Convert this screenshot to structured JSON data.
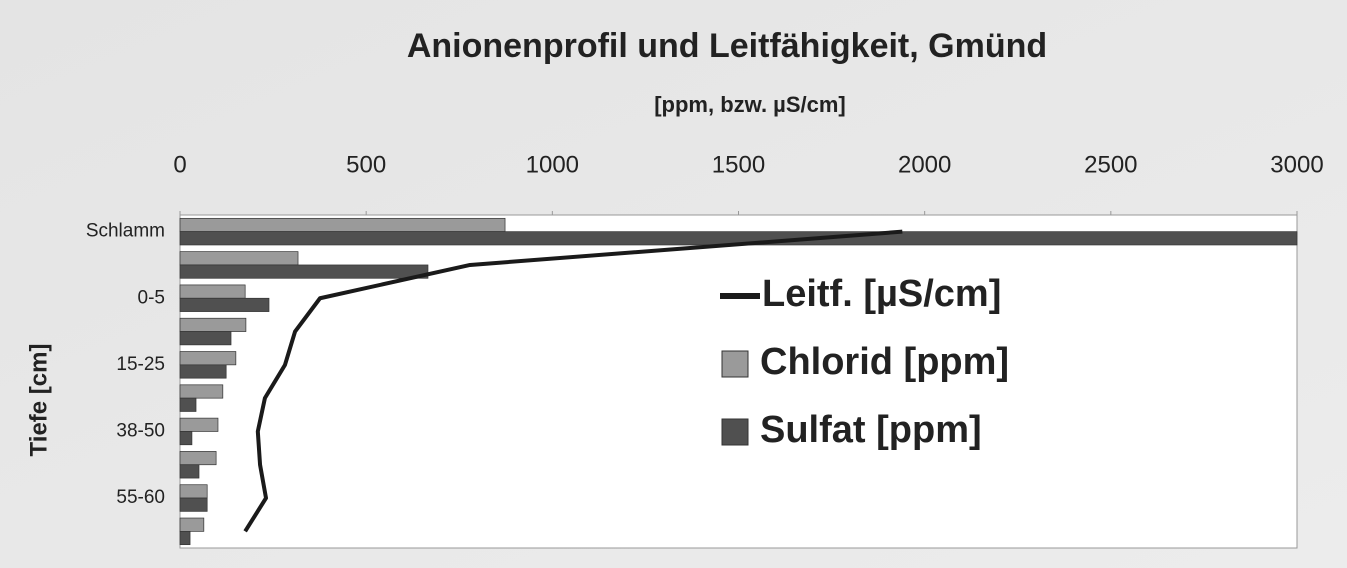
{
  "chart_data": {
    "type": "bar",
    "orientation": "horizontal",
    "title": "Anionenprofil und Leitfähigkeit, Gmünd",
    "subtitle": "[ppm, bzw. µS/cm]",
    "y_label": "Tiefe [cm]",
    "categories": [
      "Schlamm",
      null,
      "0-5",
      null,
      "15-25",
      null,
      "38-50",
      null,
      "55-60",
      null
    ],
    "series": [
      {
        "name": "Leitf. [µS/cm]",
        "type": "line",
        "color": "#1a1a1a",
        "values": [
          1940,
          779,
          376,
          309,
          282,
          228,
          209,
          215,
          231,
          175
        ]
      },
      {
        "name": "Chlorid [ppm]",
        "type": "bar",
        "color": "#9a9a9a",
        "values": [
          873,
          317,
          175,
          177,
          150,
          115,
          102,
          97,
          73,
          64
        ]
      },
      {
        "name": "Sulfat [ppm]",
        "type": "bar",
        "color": "#505050",
        "values": [
          3000,
          666,
          239,
          137,
          124,
          43,
          32,
          51,
          73,
          27
        ]
      }
    ],
    "xlim": [
      0,
      3000
    ],
    "xticks": [
      0,
      500,
      1000,
      1500,
      2000,
      2500,
      3000
    ],
    "legend": "right"
  }
}
